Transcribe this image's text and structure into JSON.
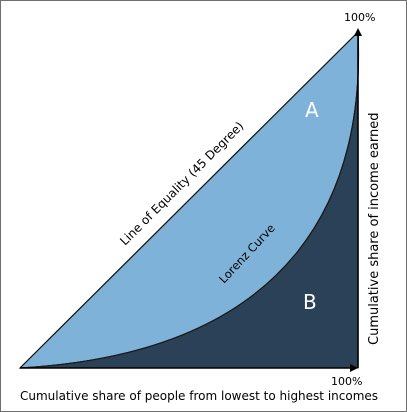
{
  "diagram": {
    "title": "",
    "labels": {
      "top_percent": "100%",
      "bottom_percent": "100%",
      "y_axis": "Cumulative share of income earned",
      "x_axis": "Cumulative share of people from lowest to highest incomes",
      "equality_line": "Line of Equality (45 Degree)",
      "lorenz_curve": "Lorenz Curve",
      "area_a": "A",
      "area_b": "B"
    },
    "colors": {
      "area_a_fill": "#7fb2d8",
      "area_b_fill": "#2b4157",
      "outline": "#1a1a1a",
      "frame_border": "#6f6f6f"
    }
  }
}
